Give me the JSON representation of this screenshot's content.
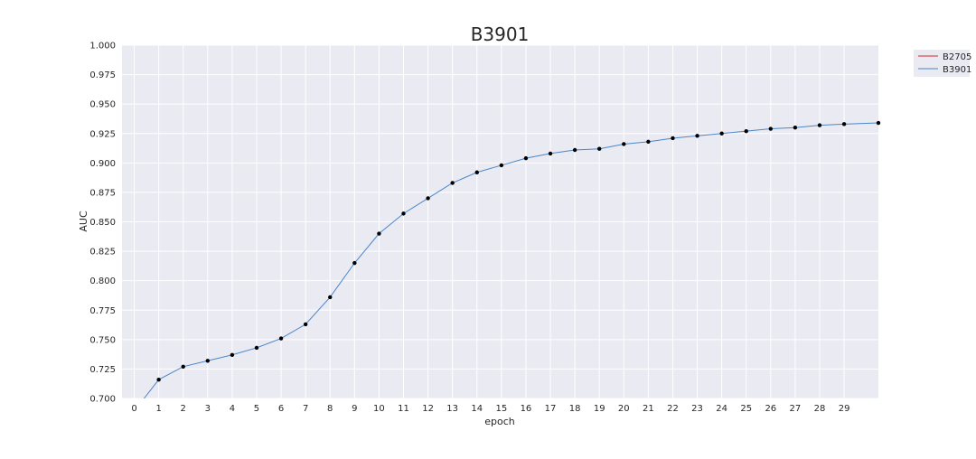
{
  "chart_data": {
    "type": "line",
    "title": "B3901",
    "xlabel": "epoch",
    "ylabel": "AUC",
    "xlim": [
      -0.5,
      30.4
    ],
    "ylim": [
      0.7,
      1.0
    ],
    "x_ticks": [
      0,
      1,
      2,
      3,
      4,
      5,
      6,
      7,
      8,
      9,
      10,
      11,
      12,
      13,
      14,
      15,
      16,
      17,
      18,
      19,
      20,
      21,
      22,
      23,
      24,
      25,
      26,
      27,
      28,
      29
    ],
    "x_tick_labels": [
      "0",
      "1",
      "2",
      "3",
      "4",
      "5",
      "6",
      "7",
      "8",
      "9",
      "10",
      "11",
      "12",
      "13",
      "14",
      "15",
      "16",
      "17",
      "18",
      "19",
      "20",
      "21",
      "22",
      "23",
      "24",
      "25",
      "26",
      "27",
      "28",
      "29"
    ],
    "y_ticks": [
      0.7,
      0.725,
      0.75,
      0.775,
      0.8,
      0.825,
      0.85,
      0.875,
      0.9,
      0.925,
      0.95,
      0.975,
      1.0
    ],
    "y_tick_labels": [
      "0.700",
      "0.725",
      "0.750",
      "0.775",
      "0.800",
      "0.825",
      "0.850",
      "0.875",
      "0.900",
      "0.925",
      "0.950",
      "0.975",
      "1.000"
    ],
    "grid": true,
    "background_color": "#eaeaf2",
    "legend": {
      "placement": "outside-top-right",
      "entries": [
        {
          "name": "B2705",
          "color": "#d62728"
        },
        {
          "name": "B3901",
          "color": "#4a86c8"
        }
      ]
    },
    "series": [
      {
        "name": "B3901",
        "color": "#4a86c8",
        "marker_color": "#000000",
        "x": [
          0.4,
          1,
          2,
          3,
          4,
          5,
          6,
          7,
          8,
          9,
          10,
          11,
          12,
          13,
          14,
          15,
          16,
          17,
          18,
          19,
          20,
          21,
          22,
          23,
          24,
          25,
          26,
          27,
          28,
          29,
          30.4
        ],
        "y": [
          0.7,
          0.716,
          0.727,
          0.732,
          0.737,
          0.743,
          0.751,
          0.763,
          0.786,
          0.815,
          0.84,
          0.857,
          0.87,
          0.883,
          0.892,
          0.898,
          0.904,
          0.908,
          0.911,
          0.912,
          0.916,
          0.918,
          0.921,
          0.923,
          0.925,
          0.927,
          0.929,
          0.93,
          0.932,
          0.933,
          0.934
        ],
        "markers_from_index": 1
      }
    ]
  }
}
